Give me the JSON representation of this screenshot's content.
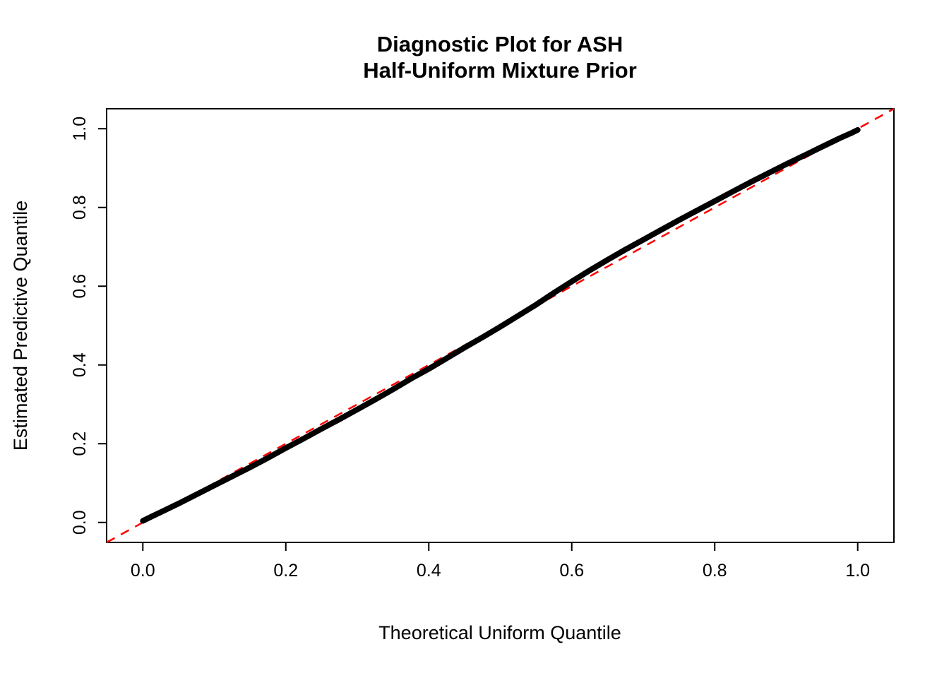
{
  "chart_data": {
    "type": "scatter",
    "title": "Diagnostic Plot for ASH\nHalf-Uniform Mixture Prior",
    "title_line1": "Diagnostic Plot for ASH",
    "title_line2": "Half-Uniform Mixture Prior",
    "xlabel": "Theoretical Uniform Quantile",
    "ylabel": "Estimated Predictive Quantile",
    "xlim": [
      0.0,
      1.0
    ],
    "ylim": [
      0.0,
      1.0
    ],
    "xticks": [
      0.0,
      0.2,
      0.4,
      0.6,
      0.8,
      1.0
    ],
    "xtick_labels": [
      "0.0",
      "0.2",
      "0.4",
      "0.6",
      "0.8",
      "1.0"
    ],
    "yticks": [
      0.0,
      0.2,
      0.4,
      0.6,
      0.8,
      1.0
    ],
    "ytick_labels": [
      "0.0",
      "0.2",
      "0.4",
      "0.6",
      "0.8",
      "1.0"
    ],
    "grid": false,
    "legend": "none",
    "series": [
      {
        "name": "estimated-predictive-quantiles",
        "type": "points",
        "color": "#000000",
        "x": [
          0.0,
          0.01,
          0.025,
          0.05,
          0.075,
          0.1,
          0.125,
          0.15,
          0.175,
          0.2,
          0.225,
          0.25,
          0.275,
          0.3,
          0.325,
          0.35,
          0.375,
          0.4,
          0.425,
          0.45,
          0.475,
          0.5,
          0.525,
          0.55,
          0.575,
          0.6,
          0.625,
          0.65,
          0.675,
          0.7,
          0.725,
          0.75,
          0.775,
          0.8,
          0.825,
          0.85,
          0.875,
          0.9,
          0.925,
          0.95,
          0.975,
          0.99,
          1.0
        ],
        "y": [
          0.004,
          0.013,
          0.026,
          0.048,
          0.071,
          0.094,
          0.117,
          0.14,
          0.164,
          0.189,
          0.213,
          0.238,
          0.262,
          0.287,
          0.312,
          0.338,
          0.365,
          0.39,
          0.417,
          0.444,
          0.47,
          0.497,
          0.525,
          0.553,
          0.583,
          0.612,
          0.64,
          0.667,
          0.693,
          0.718,
          0.743,
          0.768,
          0.792,
          0.816,
          0.84,
          0.864,
          0.887,
          0.91,
          0.932,
          0.954,
          0.976,
          0.988,
          0.997
        ]
      },
      {
        "name": "identity-reference-line",
        "type": "dashed-line",
        "color": "#ff0000",
        "x": [
          0.0,
          1.0
        ],
        "y": [
          0.0,
          1.0
        ]
      }
    ],
    "colors": {
      "points": "#000000",
      "reference_line": "#ff0000",
      "axis": "#000000"
    }
  }
}
